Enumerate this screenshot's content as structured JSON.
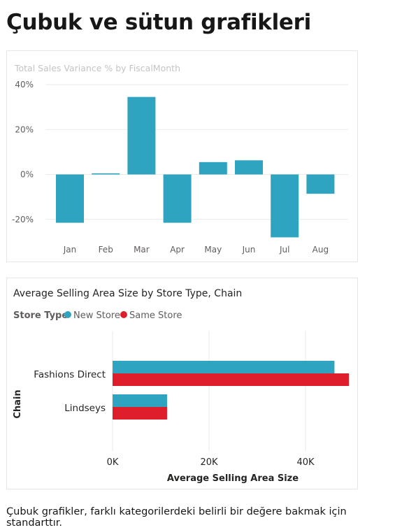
{
  "page": {
    "title": "Çubuk ve sütun grafikleri",
    "caption": "Çubuk grafikler, farklı kategorilerdeki belirli bir değere bakmak için standarttır."
  },
  "colors": {
    "bar_teal": "#2ea4c1",
    "same_store_red": "#df1e2c",
    "grid": "#eaeaea",
    "muted_text": "#c4c4c4",
    "axis_text": "#605e5c",
    "dark_text": "#252423"
  },
  "chart_data": [
    {
      "type": "bar",
      "orientation": "vertical",
      "title": "Total Sales Variance % by FiscalMonth",
      "categories": [
        "Jan",
        "Feb",
        "Mar",
        "Apr",
        "May",
        "Jun",
        "Jul",
        "Aug"
      ],
      "values": [
        -21.5,
        0.5,
        34.5,
        -21.5,
        5.5,
        6.3,
        -28.0,
        -8.6
      ],
      "yticks": [
        "40%",
        "20%",
        "0%",
        "-20%"
      ],
      "ylim": [
        -30,
        40
      ],
      "grid": true
    },
    {
      "type": "bar",
      "orientation": "horizontal",
      "title": "Average Selling Area Size by Store Type, Chain",
      "legend_title": "Store Type",
      "legend_position": "top-left",
      "categories": [
        "Fashions Direct",
        "Lindseys"
      ],
      "series": [
        {
          "name": "New Store",
          "values": [
            46000,
            11300
          ]
        },
        {
          "name": "Same Store",
          "values": [
            49000,
            11300
          ]
        }
      ],
      "xticks": [
        "0K",
        "20K",
        "40K"
      ],
      "xlim": [
        0,
        50000
      ],
      "xlabel": "Average Selling Area Size",
      "ylabel": "Chain",
      "grid": true
    }
  ]
}
